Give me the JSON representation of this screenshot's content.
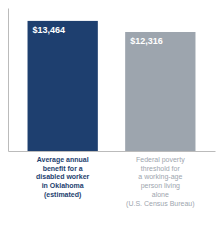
{
  "chart_data": {
    "type": "bar",
    "categories": [
      "Average annual\nbenefit for a\ndisabled worker\nin Oklahoma\n(estimated)",
      "Federal poverty\nthreshold for\na working-age\nperson living\nalone\n(U.S. Census Bureau)"
    ],
    "values": [
      13464,
      12316
    ],
    "value_labels": [
      "$13,464",
      "$12,316"
    ],
    "data_labels": true,
    "colors": [
      "#1e3f6f",
      "#9da5ae"
    ],
    "ylim": [
      0,
      14800
    ],
    "grid": false,
    "tick_labels": "x"
  }
}
